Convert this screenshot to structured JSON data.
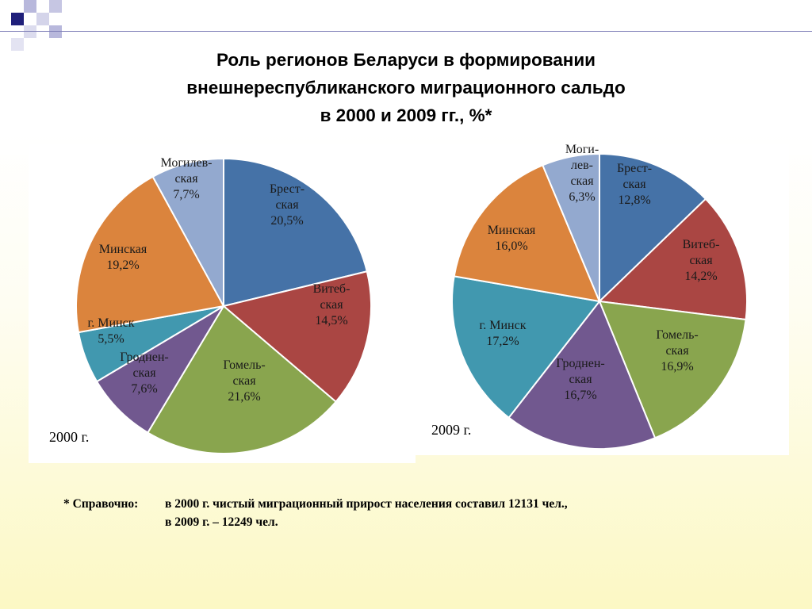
{
  "slide": {
    "title_lines": [
      "Роль регионов Беларуси в формировании",
      "внешнереспубликанского миграционного сальдо",
      "в 2000 и 2009 гг., %*"
    ],
    "note": {
      "label": "* Справочно:",
      "line1": "в 2000 г. чистый миграционный прирост населения составил 12131 чел.,",
      "line2": "в 2009 г. – 12249 чел."
    }
  },
  "chart_data": [
    {
      "type": "pie",
      "year_label": "2000 г.",
      "slices": [
        {
          "name": "Брестская",
          "value": 20.5,
          "label_lines": [
            "Брест-",
            "ская",
            "20,5%"
          ],
          "color": "#4572a7"
        },
        {
          "name": "Витебская",
          "value": 14.5,
          "label_lines": [
            "Витеб-",
            "ская",
            "14,5%"
          ],
          "color": "#aa4643"
        },
        {
          "name": "Гомельская",
          "value": 21.6,
          "label_lines": [
            "Гомель-",
            "ская",
            "21,6%"
          ],
          "color": "#89a54e"
        },
        {
          "name": "Гродненская",
          "value": 7.6,
          "label_lines": [
            "Гроднен-",
            "ская",
            "7,6%"
          ],
          "color": "#71588f"
        },
        {
          "name": "г. Минск",
          "value": 5.5,
          "label_lines": [
            "г. Минск",
            "5,5%"
          ],
          "color": "#4198af"
        },
        {
          "name": "Минская",
          "value": 19.2,
          "label_lines": [
            "Минская",
            "19,2%"
          ],
          "color": "#db843d"
        },
        {
          "name": "Могилевская",
          "value": 7.7,
          "label_lines": [
            "Могилев-",
            "ская",
            "7,7%"
          ],
          "color": "#93a9cf"
        }
      ]
    },
    {
      "type": "pie",
      "year_label": "2009 г.",
      "slices": [
        {
          "name": "Брестская",
          "value": 12.8,
          "label_lines": [
            "Брест-",
            "ская",
            "12,8%"
          ],
          "color": "#4572a7"
        },
        {
          "name": "Витебская",
          "value": 14.2,
          "label_lines": [
            "Витеб-",
            "ская",
            "14,2%"
          ],
          "color": "#aa4643"
        },
        {
          "name": "Гомельская",
          "value": 16.9,
          "label_lines": [
            "Гомель-",
            "ская",
            "16,9%"
          ],
          "color": "#89a54e"
        },
        {
          "name": "Гродненская",
          "value": 16.7,
          "label_lines": [
            "Гроднен-",
            "ская",
            "16,7%"
          ],
          "color": "#71588f"
        },
        {
          "name": "г. Минск",
          "value": 17.2,
          "label_lines": [
            "г. Минск",
            "17,2%"
          ],
          "color": "#4198af"
        },
        {
          "name": "Минская",
          "value": 16.0,
          "label_lines": [
            "Минская",
            "16,0%"
          ],
          "color": "#db843d"
        },
        {
          "name": "Могилевская",
          "value": 6.3,
          "label_lines": [
            "Моги-",
            "лев-",
            "ская",
            "6,3%"
          ],
          "color": "#93a9cf"
        }
      ]
    }
  ]
}
